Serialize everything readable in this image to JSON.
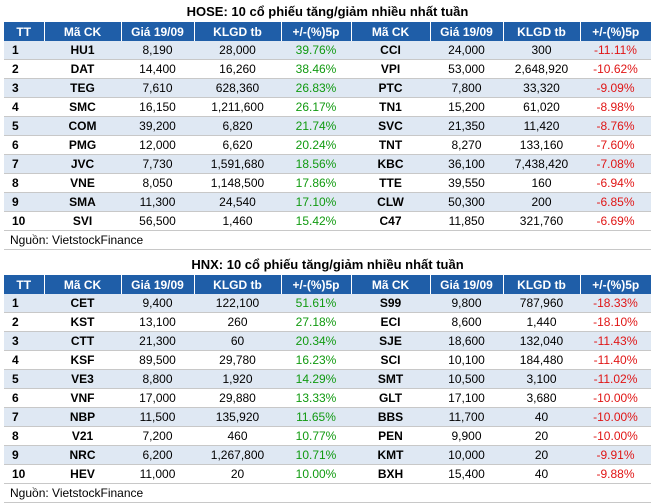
{
  "columns": [
    "TT",
    "Mã CK",
    "Giá 19/09",
    "KLGD tb",
    "+/-(%)5p",
    "Mã CK",
    "Giá 19/09",
    "KLGD tb",
    "+/-(%)5p"
  ],
  "source": "Nguồn: VietstockFinance",
  "colors": {
    "header_bg": "#1f5ea8",
    "up": "#109a10",
    "down": "#e01515",
    "row_shade": "#dfe8f3"
  },
  "hose": {
    "title": "HOSE: 10 cổ phiếu tăng/giảm nhiều nhất tuần",
    "rows": [
      [
        "1",
        "HU1",
        "8,190",
        "28,000",
        "39.76%",
        "CCI",
        "24,000",
        "300",
        "-11.11%"
      ],
      [
        "2",
        "DAT",
        "14,400",
        "16,260",
        "38.46%",
        "VPI",
        "53,000",
        "2,648,920",
        "-10.62%"
      ],
      [
        "3",
        "TEG",
        "7,610",
        "628,360",
        "26.83%",
        "PTC",
        "7,800",
        "33,320",
        "-9.09%"
      ],
      [
        "4",
        "SMC",
        "16,150",
        "1,211,600",
        "26.17%",
        "TN1",
        "15,200",
        "61,020",
        "-8.98%"
      ],
      [
        "5",
        "COM",
        "39,200",
        "6,820",
        "21.74%",
        "SVC",
        "21,350",
        "11,420",
        "-8.76%"
      ],
      [
        "6",
        "PMG",
        "12,000",
        "6,620",
        "20.24%",
        "TNT",
        "8,270",
        "133,160",
        "-7.60%"
      ],
      [
        "7",
        "JVC",
        "7,730",
        "1,591,680",
        "18.56%",
        "KBC",
        "36,100",
        "7,438,420",
        "-7.08%"
      ],
      [
        "8",
        "VNE",
        "8,050",
        "1,148,500",
        "17.86%",
        "TTE",
        "39,550",
        "160",
        "-6.94%"
      ],
      [
        "9",
        "SMA",
        "11,300",
        "24,540",
        "17.10%",
        "CLW",
        "50,300",
        "200",
        "-6.85%"
      ],
      [
        "10",
        "SVI",
        "56,500",
        "1,460",
        "15.42%",
        "C47",
        "11,850",
        "321,760",
        "-6.69%"
      ]
    ]
  },
  "hnx": {
    "title": "HNX: 10 cổ phiếu tăng/giảm nhiều nhất tuần",
    "rows": [
      [
        "1",
        "CET",
        "9,400",
        "122,100",
        "51.61%",
        "S99",
        "9,800",
        "787,960",
        "-18.33%"
      ],
      [
        "2",
        "KST",
        "13,100",
        "260",
        "27.18%",
        "ECI",
        "8,600",
        "1,440",
        "-18.10%"
      ],
      [
        "3",
        "CTT",
        "21,300",
        "60",
        "20.34%",
        "SJE",
        "18,600",
        "132,040",
        "-11.43%"
      ],
      [
        "4",
        "KSF",
        "89,500",
        "29,780",
        "16.23%",
        "SCI",
        "10,100",
        "184,480",
        "-11.40%"
      ],
      [
        "5",
        "VE3",
        "8,800",
        "1,920",
        "14.29%",
        "SMT",
        "10,500",
        "3,100",
        "-11.02%"
      ],
      [
        "6",
        "VNF",
        "17,000",
        "29,880",
        "13.33%",
        "GLT",
        "17,100",
        "3,680",
        "-10.00%"
      ],
      [
        "7",
        "NBP",
        "11,500",
        "135,920",
        "11.65%",
        "BBS",
        "11,700",
        "40",
        "-10.00%"
      ],
      [
        "8",
        "V21",
        "7,200",
        "460",
        "10.77%",
        "PEN",
        "9,900",
        "20",
        "-10.00%"
      ],
      [
        "9",
        "NRC",
        "6,200",
        "1,267,800",
        "10.71%",
        "KMT",
        "10,000",
        "20",
        "-9.91%"
      ],
      [
        "10",
        "HEV",
        "11,000",
        "20",
        "10.00%",
        "BXH",
        "15,400",
        "40",
        "-9.88%"
      ]
    ]
  }
}
